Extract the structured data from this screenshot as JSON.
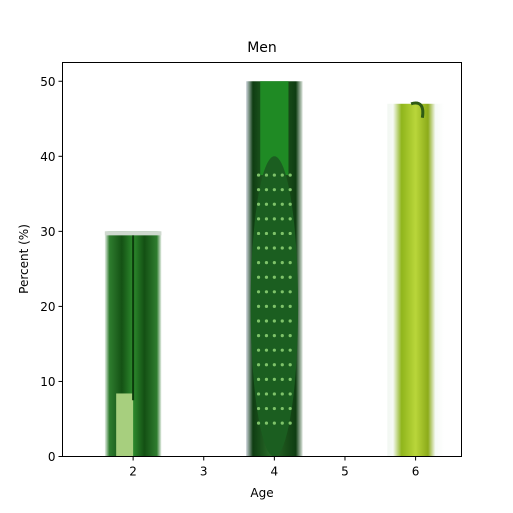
{
  "chart_data": {
    "type": "bar",
    "title": "Men",
    "xlabel": "Age",
    "ylabel": "Percent (%)",
    "x": [
      2,
      4,
      6
    ],
    "values": [
      30,
      50,
      47
    ],
    "xlim": [
      1.0,
      6.65
    ],
    "ylim": [
      0,
      52.5
    ],
    "xticks": [
      2,
      3,
      4,
      5,
      6
    ],
    "yticks": [
      0,
      10,
      20,
      30,
      40,
      50
    ],
    "bar_width": 0.8,
    "bar_fill": "vegetable-images",
    "bar_styles": [
      {
        "kind": "leek",
        "color": "#1f6b1f"
      },
      {
        "kind": "cucumber",
        "color": "#1e5a1e"
      },
      {
        "kind": "pepper",
        "color": "#9cbf22"
      }
    ],
    "grid": false,
    "legend": "none"
  }
}
